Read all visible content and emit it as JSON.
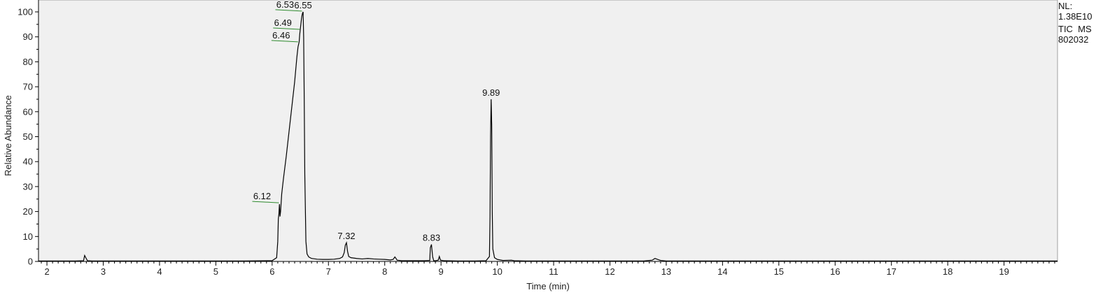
{
  "chart_data": {
    "type": "line",
    "title": "",
    "xlabel": "Time (min)",
    "ylabel": "Relative Abundance",
    "xlim": [
      1.85,
      19.95
    ],
    "ylim": [
      0,
      100
    ],
    "x_ticks": [
      2,
      3,
      4,
      5,
      6,
      7,
      8,
      9,
      10,
      11,
      12,
      13,
      14,
      15,
      16,
      17,
      18,
      19
    ],
    "y_ticks": [
      0,
      10,
      20,
      30,
      40,
      50,
      60,
      70,
      80,
      90,
      100
    ],
    "grid": false,
    "colors": {
      "line": "#000000",
      "annotation_line": "#2e8b2e",
      "plot_background": "#f0f0f0"
    },
    "series": [
      {
        "x": [
          1.85,
          2.2,
          2.5,
          2.65,
          2.67,
          2.69,
          2.72,
          2.8,
          3.5,
          4.5,
          5.5,
          6.0,
          6.08,
          6.1,
          6.11,
          6.12,
          6.13,
          6.14,
          6.15,
          6.17,
          6.2,
          6.25,
          6.3,
          6.35,
          6.4,
          6.44,
          6.46,
          6.48,
          6.49,
          6.5,
          6.51,
          6.52,
          6.53,
          6.54,
          6.55,
          6.56,
          6.57,
          6.58,
          6.6,
          6.62,
          6.65,
          6.7,
          6.8,
          6.9,
          7.0,
          7.1,
          7.2,
          7.25,
          7.28,
          7.3,
          7.32,
          7.34,
          7.36,
          7.4,
          7.5,
          7.6,
          7.7,
          7.8,
          7.9,
          8.0,
          8.1,
          8.15,
          8.18,
          8.2,
          8.22,
          8.3,
          8.5,
          8.7,
          8.8,
          8.81,
          8.83,
          8.85,
          8.87,
          8.9,
          8.95,
          8.97,
          8.99,
          9.05,
          9.3,
          9.6,
          9.8,
          9.86,
          9.87,
          9.88,
          9.89,
          9.9,
          9.91,
          9.92,
          9.95,
          10.0,
          10.1,
          10.25,
          10.3,
          10.5,
          11.0,
          12.0,
          12.6,
          12.75,
          12.8,
          12.85,
          12.9,
          13.0,
          14.0,
          16.0,
          18.0,
          19.95
        ],
        "y": [
          0.2,
          0.2,
          0.2,
          0.3,
          2.4,
          1.5,
          0.3,
          0.2,
          0.2,
          0.2,
          0.2,
          0.3,
          1.5,
          8.0,
          17.0,
          19.0,
          23.0,
          18.0,
          20.0,
          27.0,
          33.0,
          42.0,
          52.0,
          62.0,
          72.0,
          82.0,
          86.0,
          88.0,
          91.0,
          93.0,
          95.0,
          97.0,
          98.5,
          99.5,
          100.0,
          90.0,
          65.0,
          35.0,
          8.0,
          3.0,
          1.8,
          1.2,
          0.9,
          0.8,
          0.8,
          0.9,
          1.2,
          1.8,
          3.5,
          6.5,
          7.5,
          4.0,
          2.0,
          1.5,
          1.2,
          1.0,
          1.2,
          1.0,
          0.9,
          0.8,
          0.6,
          0.8,
          1.8,
          1.2,
          0.5,
          0.3,
          0.3,
          0.3,
          0.4,
          5.5,
          6.8,
          2.0,
          0.3,
          0.3,
          0.5,
          2.0,
          0.5,
          0.3,
          0.2,
          0.2,
          0.3,
          2.0,
          18.0,
          50.0,
          65.0,
          55.0,
          20.0,
          5.0,
          1.5,
          0.8,
          0.4,
          0.5,
          0.3,
          0.2,
          0.2,
          0.2,
          0.2,
          0.5,
          1.2,
          0.8,
          0.4,
          0.2,
          0.2,
          0.2,
          0.2,
          0.2
        ]
      }
    ],
    "peaks": [
      {
        "label": "6.53",
        "x": 6.53,
        "y": 100.3,
        "line_y": 100.3
      },
      {
        "label": "6.55",
        "x": 6.55,
        "y": 100.0
      },
      {
        "label": "6.49",
        "x": 6.49,
        "y": 93.0,
        "line_y": 93.0
      },
      {
        "label": "6.46",
        "x": 6.46,
        "y": 88.0,
        "line_y": 88.0
      },
      {
        "label": "6.12",
        "x": 6.12,
        "y": 23.5,
        "line_y": 23.5
      },
      {
        "label": "7.32",
        "x": 7.32,
        "y": 7.5
      },
      {
        "label": "8.83",
        "x": 8.83,
        "y": 6.8
      },
      {
        "label": "9.89",
        "x": 9.89,
        "y": 65.0
      }
    ]
  },
  "info": {
    "nl_label": "NL:",
    "nl_value": "1.38E10",
    "scan_type": "TIC  MS",
    "sample": "802032"
  }
}
